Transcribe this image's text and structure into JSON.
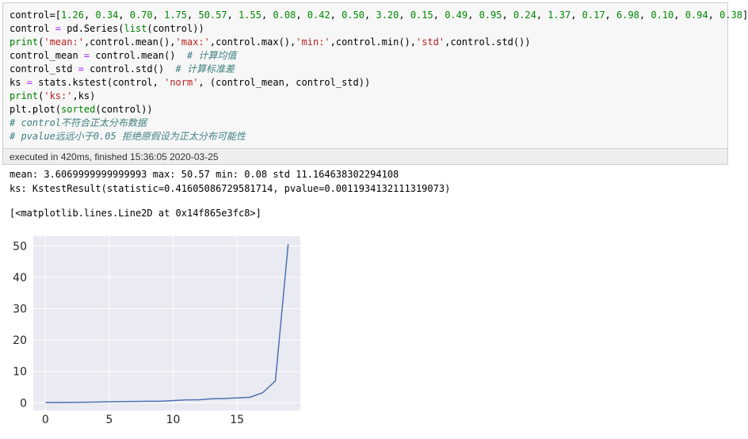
{
  "cell": {
    "code_lines": [
      [
        {
          "t": "control=[",
          "c": ""
        },
        {
          "t": "1.26",
          "c": "num"
        },
        {
          "t": ", ",
          "c": ""
        },
        {
          "t": "0.34",
          "c": "num"
        },
        {
          "t": ", ",
          "c": ""
        },
        {
          "t": "0.70",
          "c": "num"
        },
        {
          "t": ", ",
          "c": ""
        },
        {
          "t": "1.75",
          "c": "num"
        },
        {
          "t": ", ",
          "c": ""
        },
        {
          "t": "50.57",
          "c": "num"
        },
        {
          "t": ", ",
          "c": ""
        },
        {
          "t": "1.55",
          "c": "num"
        },
        {
          "t": ", ",
          "c": ""
        },
        {
          "t": "0.08",
          "c": "num"
        },
        {
          "t": ", ",
          "c": ""
        },
        {
          "t": "0.42",
          "c": "num"
        },
        {
          "t": ", ",
          "c": ""
        },
        {
          "t": "0.50",
          "c": "num"
        },
        {
          "t": ", ",
          "c": ""
        },
        {
          "t": "3.20",
          "c": "num"
        },
        {
          "t": ", ",
          "c": ""
        },
        {
          "t": "0.15",
          "c": "num"
        },
        {
          "t": ", ",
          "c": ""
        },
        {
          "t": "0.49",
          "c": "num"
        },
        {
          "t": ", ",
          "c": ""
        },
        {
          "t": "0.95",
          "c": "num"
        },
        {
          "t": ", ",
          "c": ""
        },
        {
          "t": "0.24",
          "c": "num"
        },
        {
          "t": ", ",
          "c": ""
        },
        {
          "t": "1.37",
          "c": "num"
        },
        {
          "t": ", ",
          "c": ""
        },
        {
          "t": "0.17",
          "c": "num"
        },
        {
          "t": ", ",
          "c": ""
        },
        {
          "t": "6.98",
          "c": "num"
        },
        {
          "t": ", ",
          "c": ""
        },
        {
          "t": "0.10",
          "c": "num"
        },
        {
          "t": ", ",
          "c": ""
        },
        {
          "t": "0.94",
          "c": "num"
        },
        {
          "t": ", ",
          "c": ""
        },
        {
          "t": "0.38",
          "c": "num"
        },
        {
          "t": "]",
          "c": ""
        }
      ],
      [
        {
          "t": "control ",
          "c": ""
        },
        {
          "t": "=",
          "c": "op"
        },
        {
          "t": " pd.Series(",
          "c": ""
        },
        {
          "t": "list",
          "c": "kw"
        },
        {
          "t": "(control))",
          "c": ""
        }
      ],
      [
        {
          "t": "print",
          "c": "kw"
        },
        {
          "t": "(",
          "c": ""
        },
        {
          "t": "'mean:'",
          "c": "str"
        },
        {
          "t": ",control.mean(),",
          "c": ""
        },
        {
          "t": "'max:'",
          "c": "str"
        },
        {
          "t": ",control.max(),",
          "c": ""
        },
        {
          "t": "'min:'",
          "c": "str"
        },
        {
          "t": ",control.min(),",
          "c": ""
        },
        {
          "t": "'std'",
          "c": "str"
        },
        {
          "t": ",control.std())",
          "c": ""
        }
      ],
      [
        {
          "t": "control_mean ",
          "c": ""
        },
        {
          "t": "=",
          "c": "op"
        },
        {
          "t": " control.mean()  ",
          "c": ""
        },
        {
          "t": "# 计算均值",
          "c": "cm"
        }
      ],
      [
        {
          "t": "control_std ",
          "c": ""
        },
        {
          "t": "=",
          "c": "op"
        },
        {
          "t": " control.std()  ",
          "c": ""
        },
        {
          "t": "# 计算标准差",
          "c": "cm"
        }
      ],
      [
        {
          "t": "ks ",
          "c": ""
        },
        {
          "t": "=",
          "c": "op"
        },
        {
          "t": " stats.kstest(control, ",
          "c": ""
        },
        {
          "t": "'norm'",
          "c": "str"
        },
        {
          "t": ", (control_mean, control_std))",
          "c": ""
        }
      ],
      [
        {
          "t": "print",
          "c": "kw"
        },
        {
          "t": "(",
          "c": ""
        },
        {
          "t": "'ks:'",
          "c": "str"
        },
        {
          "t": ",ks)",
          "c": ""
        }
      ],
      [
        {
          "t": "plt.plot(",
          "c": ""
        },
        {
          "t": "sorted",
          "c": "kw"
        },
        {
          "t": "(control))",
          "c": ""
        }
      ],
      [
        {
          "t": "# control不符合正太分布数据",
          "c": "cm"
        }
      ],
      [
        {
          "t": "# pvalue远远小于0.05 拒绝原假设为正太分布可能性",
          "c": "cm"
        }
      ]
    ],
    "exec_status": "executed in 420ms, finished 15:36:05 2020-03-25"
  },
  "output": {
    "stdout_line1": "mean: 3.6069999999999993 max: 50.57 min: 0.08 std 11.164638302294108",
    "stdout_line2": "ks: KstestResult(statistic=0.41605086729581714, pvalue=0.0011934132111319073)",
    "repr": "[<matplotlib.lines.Line2D at 0x14f865e3fc8>]"
  },
  "chart_data": {
    "type": "line",
    "x": [
      0,
      1,
      2,
      3,
      4,
      5,
      6,
      7,
      8,
      9,
      10,
      11,
      12,
      13,
      14,
      15,
      16,
      17,
      18,
      19
    ],
    "series": [
      {
        "values": [
          0.08,
          0.1,
          0.15,
          0.17,
          0.24,
          0.34,
          0.38,
          0.42,
          0.49,
          0.5,
          0.7,
          0.94,
          0.95,
          1.26,
          1.37,
          1.55,
          1.75,
          3.2,
          6.98,
          50.57
        ]
      }
    ],
    "x_ticks": [
      0,
      5,
      10,
      15
    ],
    "y_ticks": [
      0,
      10,
      20,
      30,
      40,
      50
    ],
    "xlim": [
      -0.95,
      19.95
    ],
    "ylim": [
      -2.45,
      53.1
    ],
    "grid": true,
    "colors": {
      "line": "#4c72b0",
      "background": "#eaeaf2",
      "grid": "#ffffff"
    }
  }
}
